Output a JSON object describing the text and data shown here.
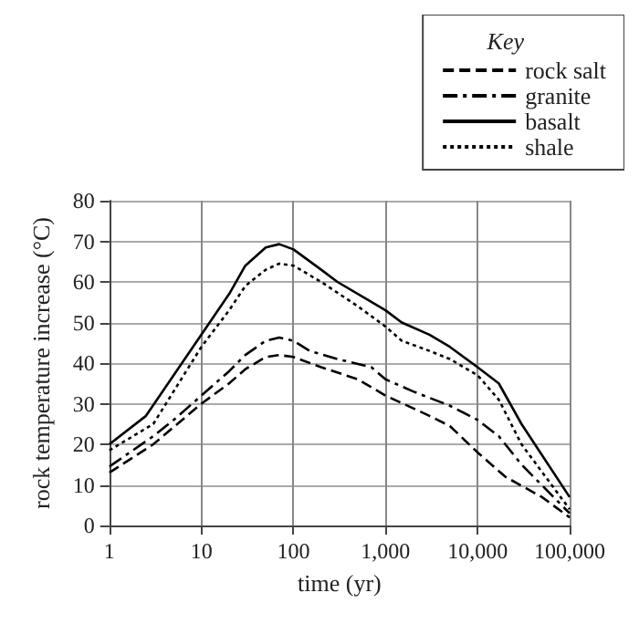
{
  "chart_data": {
    "type": "line",
    "xlabel": "time (yr)",
    "ylabel": "rock temperature increase (°C)",
    "legend_title": "Key",
    "legend": "top right",
    "log": "x",
    "grid": true,
    "marker": "none",
    "xlim": [
      1,
      100000
    ],
    "xticks": [
      1,
      10,
      100,
      {
        "value": 1000,
        "label": "1,000"
      },
      {
        "value": 10000,
        "label": "10,000"
      },
      {
        "value": 100000,
        "label": "100,000"
      }
    ],
    "ylim": [
      0,
      80
    ],
    "yticks": [
      0,
      10,
      20,
      30,
      40,
      50,
      60,
      70,
      80
    ],
    "series": [
      {
        "name": "rock salt",
        "color": "#000000",
        "line_style": "dashed",
        "x": [
          1,
          3,
          10,
          20,
          30,
          50,
          70,
          100,
          200,
          500,
          1000,
          3000,
          5000,
          10000,
          20000,
          50000,
          100000
        ],
        "values": [
          13,
          20,
          30,
          35,
          38.5,
          41.5,
          42,
          41.5,
          39,
          36,
          32,
          27,
          24.5,
          18,
          12,
          7,
          2
        ]
      },
      {
        "name": "granite",
        "color": "#000000",
        "line_style": "dashdot",
        "x": [
          1,
          3,
          5,
          10,
          20,
          30,
          50,
          70,
          100,
          150,
          300,
          700,
          1000,
          2000,
          5000,
          10000,
          17000,
          30000,
          100000
        ],
        "values": [
          14.5,
          22,
          26,
          32,
          38,
          42,
          45.5,
          46.3,
          45.5,
          43,
          41,
          39,
          36,
          33,
          29.5,
          26,
          22,
          15,
          3
        ]
      },
      {
        "name": "basalt",
        "color": "#000000",
        "line_style": "solid",
        "x": [
          1,
          2.5,
          5,
          10,
          20,
          30,
          50,
          70,
          100,
          200,
          300,
          600,
          1000,
          1500,
          3000,
          5000,
          10000,
          17000,
          30000,
          100000
        ],
        "values": [
          20,
          27,
          37,
          47,
          57,
          64,
          68.5,
          69.3,
          68,
          63,
          60,
          56,
          53,
          50,
          47,
          44,
          39,
          35,
          25,
          7
        ]
      },
      {
        "name": "shale",
        "color": "#000000",
        "line_style": "dotted",
        "x": [
          1,
          3,
          10,
          20,
          30,
          50,
          70,
          100,
          200,
          500,
          1000,
          1500,
          3000,
          5000,
          10000,
          17000,
          30000,
          100000
        ],
        "values": [
          18.5,
          25,
          44,
          53,
          59,
          63,
          64.5,
          64,
          60,
          54,
          49,
          45.5,
          43,
          41,
          37,
          31,
          20,
          4
        ]
      }
    ]
  }
}
